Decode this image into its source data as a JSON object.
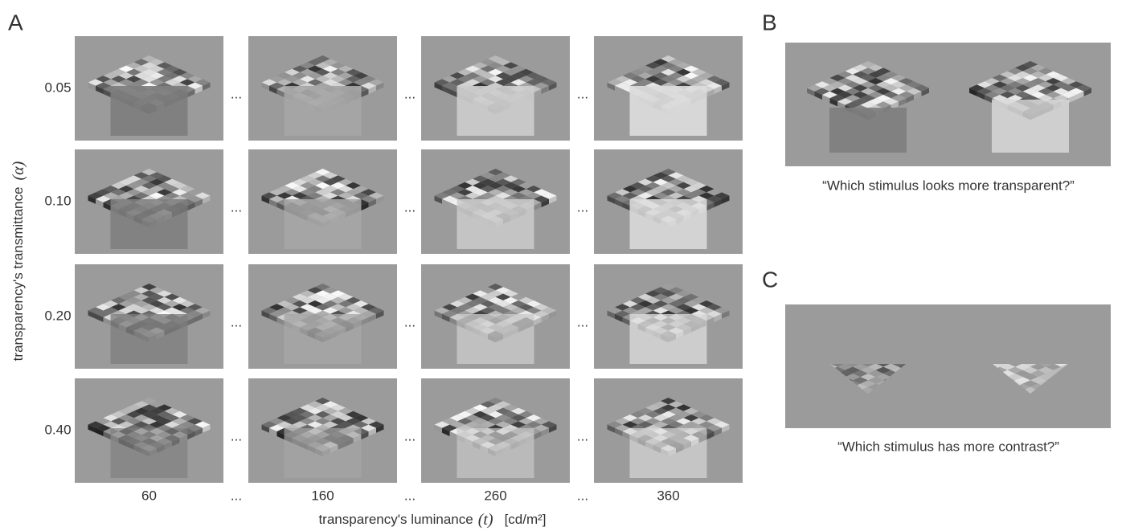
{
  "panel_a": {
    "label": "A",
    "ylabel_text": "transparency's transmittance",
    "ylabel_symbol": "(α)",
    "row_labels": [
      "0.05",
      "0.10",
      "0.20",
      "0.40"
    ],
    "column_labels": [
      "60",
      "160",
      "260",
      "360"
    ],
    "ellipsis": "...",
    "xlabel_text": "transparency's luminance",
    "xlabel_symbol": "(t)",
    "xlabel_unit": "[cd/m²]"
  },
  "panel_b": {
    "label": "B",
    "question": "“Which stimulus looks more transparent?”"
  },
  "panel_c": {
    "label": "C",
    "question": "“Which stimulus has more contrast?”"
  }
}
